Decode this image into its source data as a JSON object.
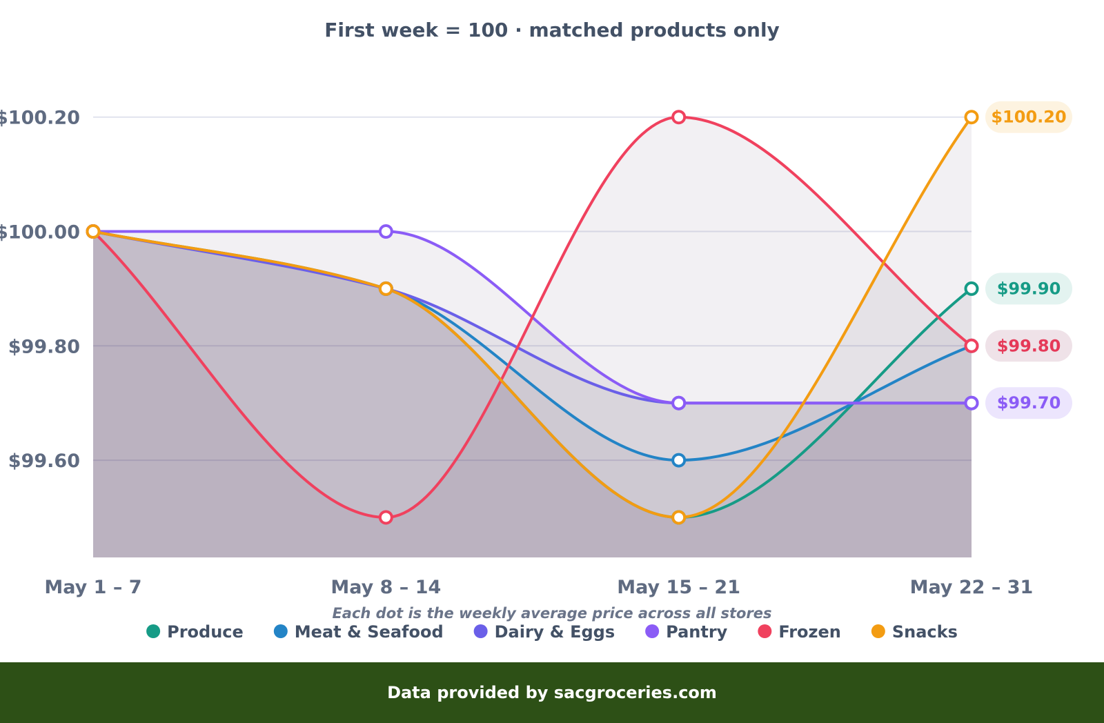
{
  "chart_data": {
    "type": "line",
    "subtitle": "First week = 100 · matched products only",
    "caption": "Each dot is the weekly average price across all stores",
    "categories": [
      "May 1 – 7",
      "May 8 – 14",
      "May 15 – 21",
      "May 22 – 31"
    ],
    "y_ticks": [
      {
        "value": 100.2,
        "label": "$100.20"
      },
      {
        "value": 100.0,
        "label": "$100.00"
      },
      {
        "value": 99.8,
        "label": "$99.80"
      },
      {
        "value": 99.6,
        "label": "$99.60"
      }
    ],
    "ylim": [
      99.43,
      100.26
    ],
    "grid": true,
    "legend_position": "bottom",
    "series": [
      {
        "name": "Produce",
        "color": "#169b86",
        "values": [
          100.0,
          99.9,
          99.5,
          99.9
        ]
      },
      {
        "name": "Meat & Seafood",
        "color": "#2384c6",
        "values": [
          100.0,
          99.9,
          99.6,
          99.8
        ]
      },
      {
        "name": "Dairy & Eggs",
        "color": "#6a5fe8",
        "values": [
          100.0,
          99.9,
          99.7,
          99.7
        ]
      },
      {
        "name": "Pantry",
        "color": "#8b5cf6",
        "values": [
          100.0,
          100.0,
          99.7,
          99.7
        ]
      },
      {
        "name": "Frozen",
        "color": "#f0415e",
        "values": [
          100.0,
          99.5,
          100.2,
          99.8
        ]
      },
      {
        "name": "Snacks",
        "color": "#f39c12",
        "values": [
          100.0,
          99.9,
          99.5,
          100.2
        ]
      }
    ],
    "end_labels": [
      {
        "text": "$100.20",
        "value": 100.2,
        "color": "#f39c12",
        "bg": "#fdf3e0"
      },
      {
        "text": "$99.90",
        "value": 99.9,
        "color": "#169b86",
        "bg": "#e3f3f0"
      },
      {
        "text": "$99.80",
        "value": 99.8,
        "color": "#e53958",
        "bg": "#efe2e8"
      },
      {
        "text": "$99.70",
        "value": 99.7,
        "color": "#8b5cf6",
        "bg": "#ece5fd"
      }
    ],
    "area_fill_color": "#4b2c5a"
  },
  "footer": {
    "text": "Data provided by sacgroceries.com"
  }
}
